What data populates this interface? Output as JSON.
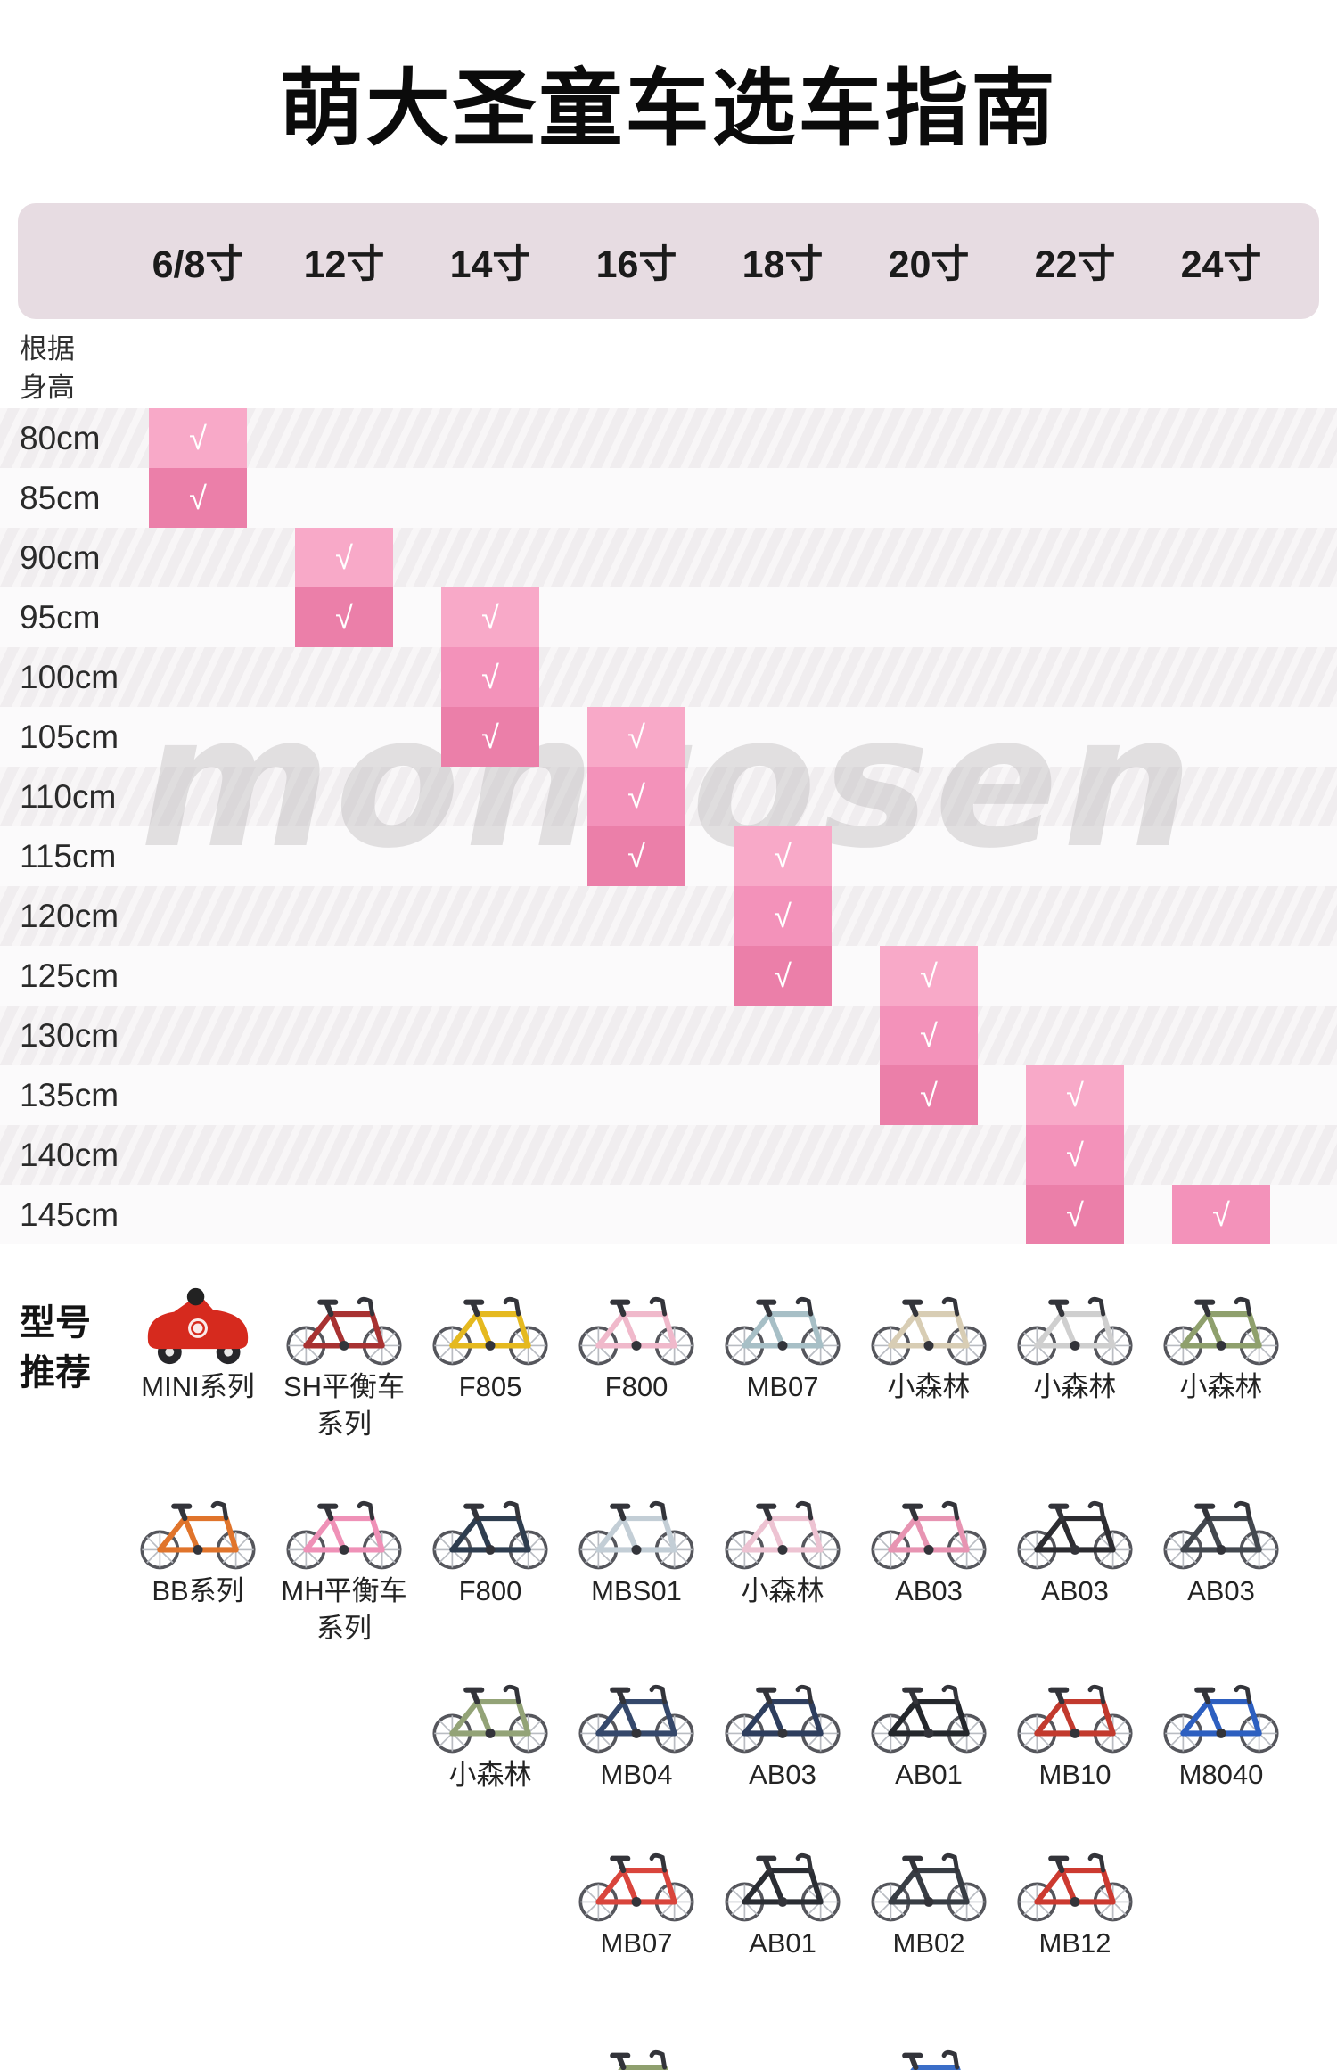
{
  "title": "萌大圣童车选车指南",
  "watermark": "montosen",
  "check_symbol": "√",
  "row_header": {
    "line1": "根据",
    "line2": "身高"
  },
  "recommend": {
    "line1": "型号",
    "line2": "推荐"
  },
  "sizes": [
    "6/8寸",
    "12寸",
    "14寸",
    "16寸",
    "18寸",
    "20寸",
    "22寸",
    "24寸"
  ],
  "colors": {
    "header_bg": "#e7dce2",
    "pink_light": "#f8a9c8",
    "pink_medium": "#f392ba",
    "pink_dark": "#eb7fa9",
    "row_odd": "#f0edef",
    "row_even": "#fbfafb",
    "check": "#ffffff"
  },
  "height_rows": [
    {
      "label": "80cm",
      "checks": [
        {
          "col": 0,
          "shade": "light"
        }
      ]
    },
    {
      "label": "85cm",
      "checks": [
        {
          "col": 0,
          "shade": "dark"
        }
      ]
    },
    {
      "label": "90cm",
      "checks": [
        {
          "col": 1,
          "shade": "light"
        }
      ]
    },
    {
      "label": "95cm",
      "checks": [
        {
          "col": 1,
          "shade": "dark"
        },
        {
          "col": 2,
          "shade": "light"
        }
      ]
    },
    {
      "label": "100cm",
      "checks": [
        {
          "col": 2,
          "shade": "medium"
        }
      ]
    },
    {
      "label": "105cm",
      "checks": [
        {
          "col": 2,
          "shade": "dark"
        },
        {
          "col": 3,
          "shade": "light"
        }
      ]
    },
    {
      "label": "110cm",
      "checks": [
        {
          "col": 3,
          "shade": "medium"
        }
      ]
    },
    {
      "label": "115cm",
      "checks": [
        {
          "col": 3,
          "shade": "dark"
        },
        {
          "col": 4,
          "shade": "light"
        }
      ]
    },
    {
      "label": "120cm",
      "checks": [
        {
          "col": 4,
          "shade": "medium"
        }
      ]
    },
    {
      "label": "125cm",
      "checks": [
        {
          "col": 4,
          "shade": "dark"
        },
        {
          "col": 5,
          "shade": "light"
        }
      ]
    },
    {
      "label": "130cm",
      "checks": [
        {
          "col": 5,
          "shade": "medium"
        }
      ]
    },
    {
      "label": "135cm",
      "checks": [
        {
          "col": 5,
          "shade": "dark"
        },
        {
          "col": 6,
          "shade": "light"
        }
      ]
    },
    {
      "label": "140cm",
      "checks": [
        {
          "col": 6,
          "shade": "medium"
        }
      ]
    },
    {
      "label": "145cm",
      "checks": [
        {
          "col": 6,
          "shade": "dark"
        },
        {
          "col": 7,
          "shade": "medium"
        }
      ]
    }
  ],
  "bike_rows": [
    {
      "bikes": [
        {
          "col": 0,
          "label": "MINI系列",
          "color": "#d62a1e",
          "style": "rideon"
        },
        {
          "col": 1,
          "label": "SH平衡车",
          "label2": "系列",
          "color": "#a83232"
        },
        {
          "col": 2,
          "label": "F805",
          "color": "#e5b91f"
        },
        {
          "col": 3,
          "label": "F800",
          "color": "#f0b9cb"
        },
        {
          "col": 4,
          "label": "MB07",
          "color": "#a7bfc6"
        },
        {
          "col": 5,
          "label": "小森林",
          "color": "#d8cdb4"
        },
        {
          "col": 6,
          "label": "小森林",
          "color": "#cfcfcf"
        },
        {
          "col": 7,
          "label": "小森林",
          "color": "#8fa06d"
        }
      ]
    },
    {
      "bikes": [
        {
          "col": 0,
          "label": "BB系列",
          "color": "#e0742b"
        },
        {
          "col": 1,
          "label": "MH平衡车",
          "label2": "系列",
          "color": "#ef91b7"
        },
        {
          "col": 2,
          "label": "F800",
          "color": "#2e3d4f"
        },
        {
          "col": 3,
          "label": "MBS01",
          "color": "#c3ced6"
        },
        {
          "col": 4,
          "label": "小森林",
          "color": "#edc3d2"
        },
        {
          "col": 5,
          "label": "AB03",
          "color": "#e794b2"
        },
        {
          "col": 6,
          "label": "AB03",
          "color": "#2c2c31"
        },
        {
          "col": 7,
          "label": "AB03",
          "color": "#43484f"
        }
      ]
    },
    {
      "bikes": [
        {
          "col": 2,
          "label": "小森林",
          "color": "#93a377"
        },
        {
          "col": 3,
          "label": "MB04",
          "color": "#35486b"
        },
        {
          "col": 4,
          "label": "AB03",
          "color": "#2e3e5e"
        },
        {
          "col": 5,
          "label": "AB01",
          "color": "#24272c"
        },
        {
          "col": 6,
          "label": "MB10",
          "color": "#c23a2e"
        },
        {
          "col": 7,
          "label": "M8040",
          "color": "#2d5fc0"
        }
      ]
    },
    {
      "bikes": [
        {
          "col": 3,
          "label": "MB07",
          "color": "#d9453c"
        },
        {
          "col": 4,
          "label": "AB01",
          "color": "#2a2d33"
        },
        {
          "col": 5,
          "label": "MB02",
          "color": "#383d44"
        },
        {
          "col": 6,
          "label": "MB12",
          "color": "#cc3a30"
        }
      ]
    },
    {
      "bikes": [
        {
          "col": 3,
          "label": "",
          "color": "#8fa06e"
        },
        {
          "col": 5,
          "label": "",
          "color": "#3b6ec8"
        }
      ]
    }
  ],
  "chart_data": {
    "type": "table",
    "title": "萌大圣童车选车指南",
    "columns": [
      "6/8寸",
      "12寸",
      "14寸",
      "16寸",
      "18寸",
      "20寸",
      "22寸",
      "24寸"
    ],
    "row_axis_label": "根据身高",
    "rows": [
      "80cm",
      "85cm",
      "90cm",
      "95cm",
      "100cm",
      "105cm",
      "110cm",
      "115cm",
      "120cm",
      "125cm",
      "130cm",
      "135cm",
      "140cm",
      "145cm"
    ],
    "size_by_height": {
      "80cm": [
        "6/8寸"
      ],
      "85cm": [
        "6/8寸"
      ],
      "90cm": [
        "12寸"
      ],
      "95cm": [
        "12寸",
        "14寸"
      ],
      "100cm": [
        "14寸"
      ],
      "105cm": [
        "14寸",
        "16寸"
      ],
      "110cm": [
        "16寸"
      ],
      "115cm": [
        "16寸",
        "18寸"
      ],
      "120cm": [
        "18寸"
      ],
      "125cm": [
        "18寸",
        "20寸"
      ],
      "130cm": [
        "20寸"
      ],
      "135cm": [
        "20寸",
        "22寸"
      ],
      "140cm": [
        "22寸"
      ],
      "145cm": [
        "22寸",
        "24寸"
      ]
    },
    "recommended_models": {
      "6/8寸": [
        "MINI系列",
        "BB系列"
      ],
      "12寸": [
        "SH平衡车系列",
        "MH平衡车系列"
      ],
      "14寸": [
        "F805",
        "F800",
        "小森林"
      ],
      "16寸": [
        "F800",
        "MBS01",
        "MB04",
        "MB07"
      ],
      "18寸": [
        "MB07",
        "小森林",
        "AB03",
        "AB01"
      ],
      "20寸": [
        "小森林",
        "AB03",
        "AB01",
        "MB02"
      ],
      "22寸": [
        "小森林",
        "AB03",
        "MB10",
        "MB12"
      ],
      "24寸": [
        "小森林",
        "AB03",
        "M8040"
      ]
    }
  }
}
